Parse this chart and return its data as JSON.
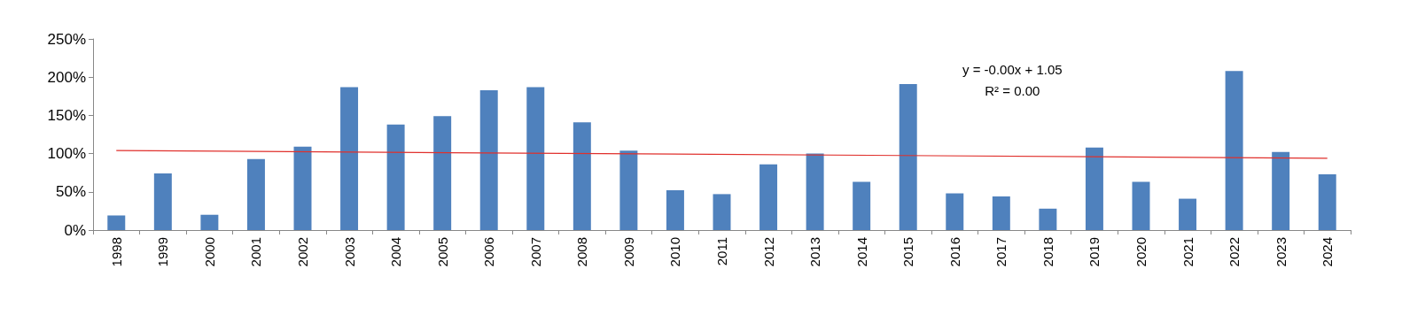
{
  "chart_data": {
    "type": "bar",
    "categories": [
      "1998",
      "1999",
      "2000",
      "2001",
      "2002",
      "2003",
      "2004",
      "2005",
      "2006",
      "2007",
      "2008",
      "2009",
      "2010",
      "2011",
      "2012",
      "2013",
      "2014",
      "2015",
      "2016",
      "2017",
      "2018",
      "2019",
      "2020",
      "2021",
      "2022",
      "2023",
      "2024"
    ],
    "series": [
      {
        "color": "#4f81bd",
        "values": [
          19,
          74,
          20,
          93,
          109,
          187,
          138,
          149,
          183,
          187,
          141,
          104,
          52,
          47,
          86,
          100,
          63,
          191,
          48,
          44,
          28,
          108,
          63,
          41,
          208,
          102,
          73
        ]
      },
      {
        "type": "line",
        "color": "#e0302c",
        "values": [
          104,
          null,
          null,
          null,
          null,
          null,
          null,
          null,
          null,
          null,
          null,
          null,
          null,
          null,
          null,
          null,
          null,
          null,
          null,
          null,
          null,
          null,
          null,
          null,
          null,
          null,
          94
        ]
      }
    ],
    "ylim": [
      0,
      250
    ],
    "yticks": [
      {
        "value": 0,
        "label": "0%"
      },
      {
        "value": 50,
        "label": "50%"
      },
      {
        "value": 100,
        "label": "100%"
      },
      {
        "value": 150,
        "label": "150%"
      },
      {
        "value": 200,
        "label": "200%"
      },
      {
        "value": 250,
        "label": "250%"
      }
    ],
    "grid": false,
    "marker": "none",
    "annotations": [
      "y = -0.00x + 1.05",
      "R² = 0.00"
    ]
  }
}
